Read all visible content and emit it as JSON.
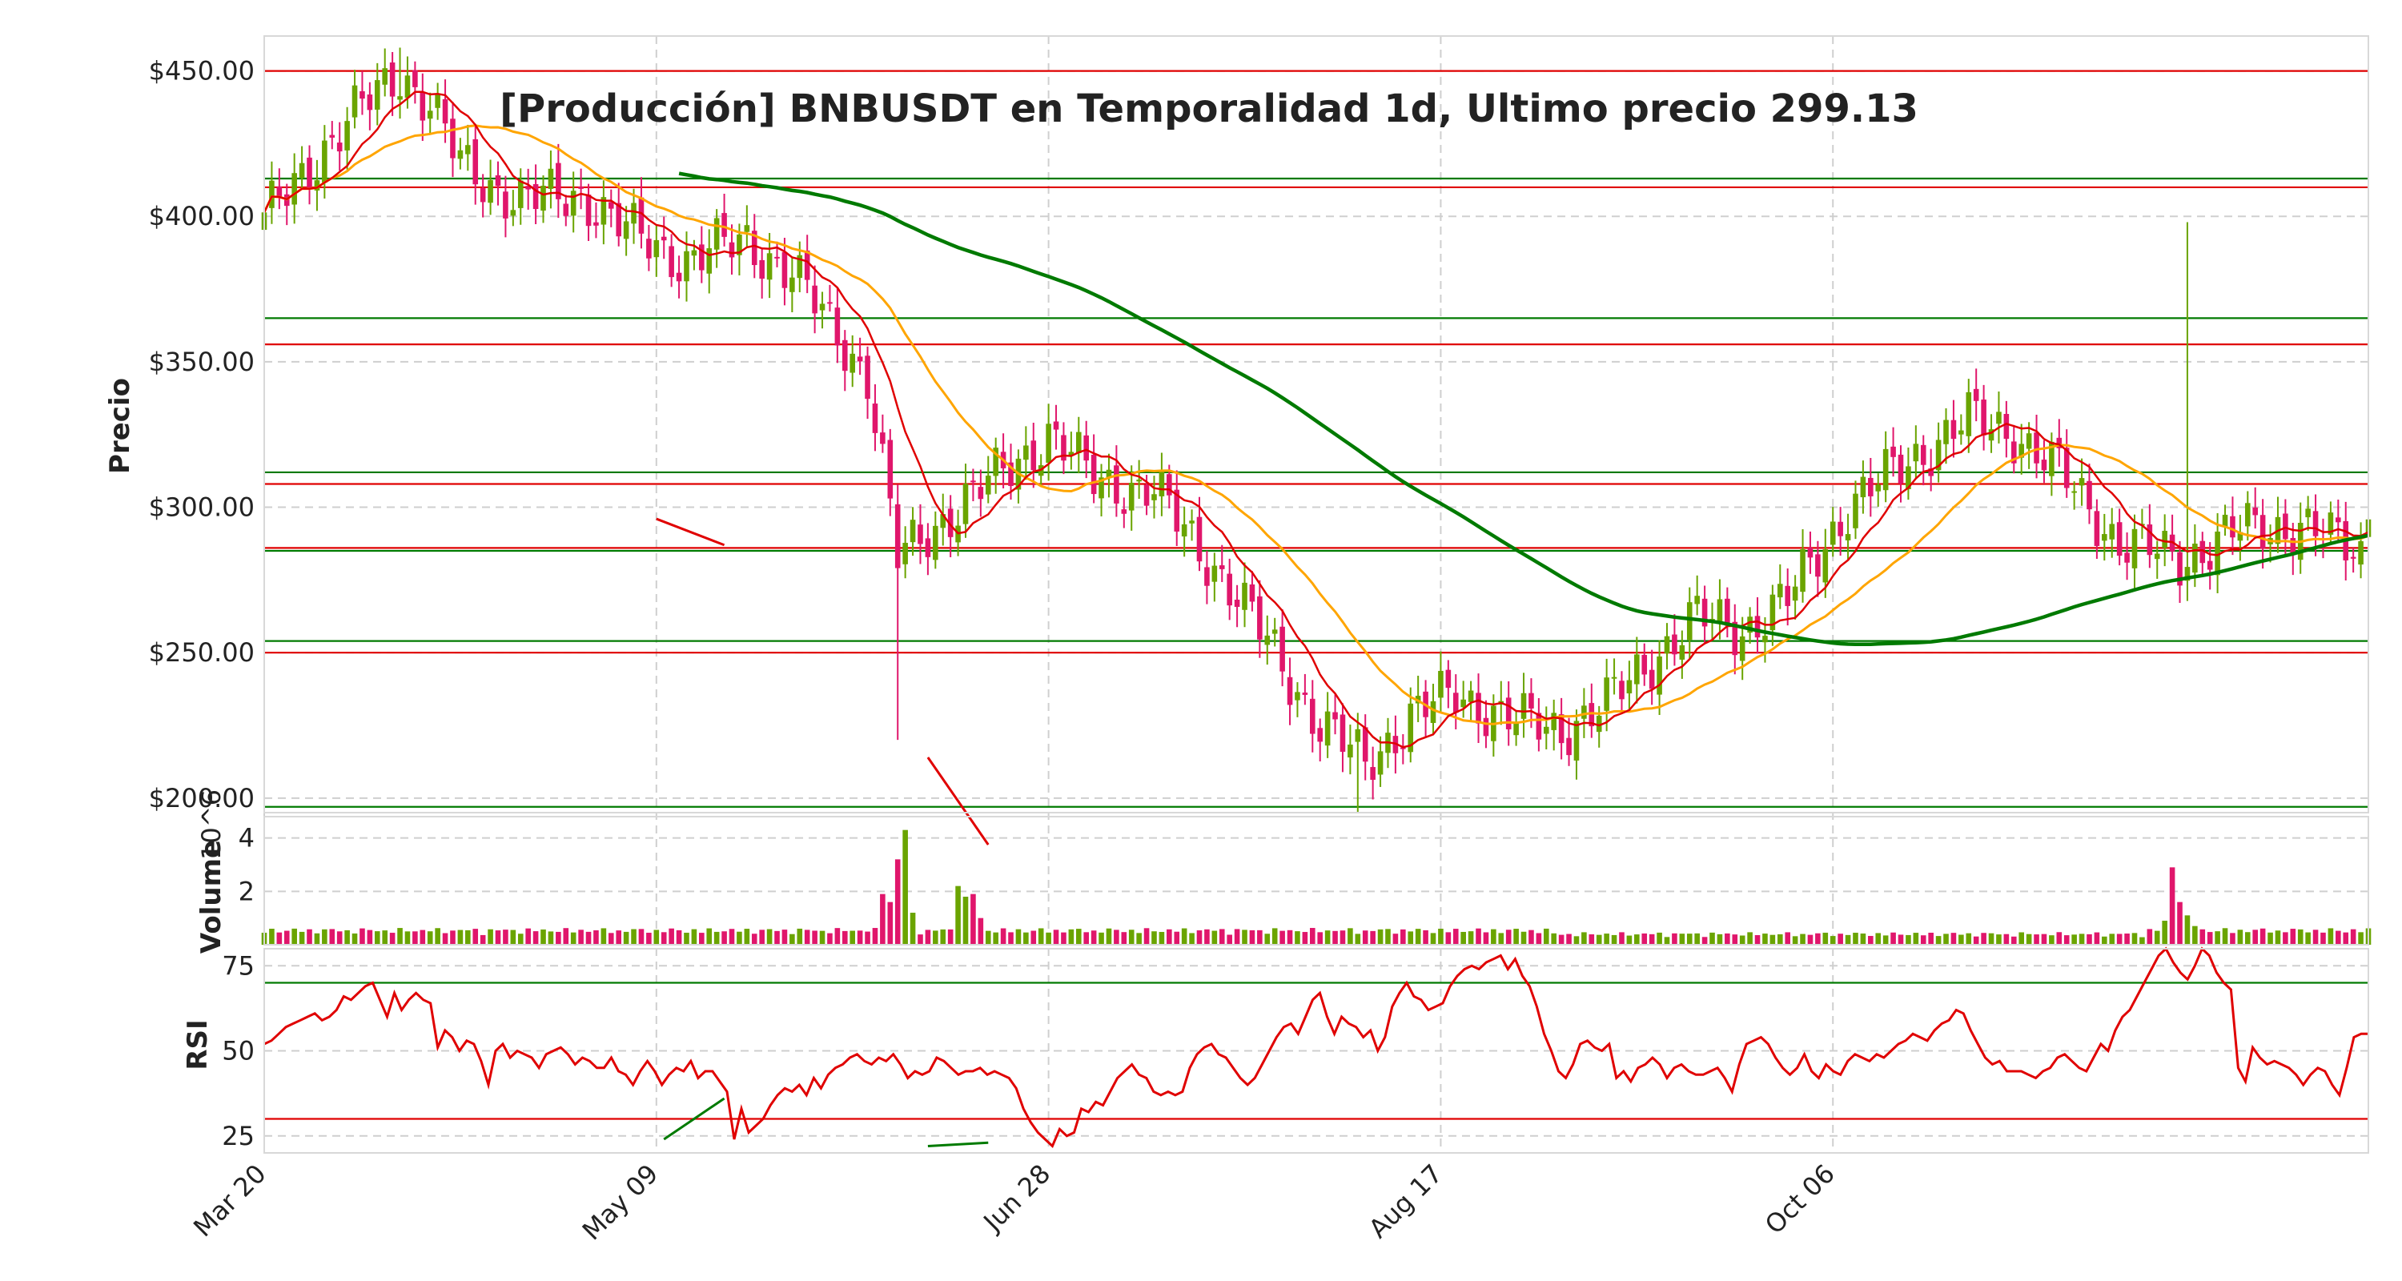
{
  "chart_data": {
    "type": "candlestick",
    "title": "[Producción] BNBUSDT en Temporalidad 1d, Ultimo precio 299.13",
    "colors": {
      "up": "#6aa400",
      "down": "#e0166b",
      "ma_short": "#e00000",
      "ma_mid": "#ffa500",
      "ma_long": "#007a00",
      "support": "#007a00",
      "resistance": "#e00000"
    },
    "grid": true,
    "x_ticks": [
      "Mar 20",
      "May 09",
      "Jun 28",
      "Aug 17",
      "Oct 06"
    ],
    "price_panel": {
      "ylabel": "Precio",
      "ylim": [
        195,
        462
      ],
      "y_ticks": [
        "$200.00",
        "$250.00",
        "$300.00",
        "$350.00",
        "$400.00",
        "$450.00"
      ],
      "resistance_lines": [
        450,
        410,
        356,
        308,
        286,
        250
      ],
      "support_lines": [
        413,
        365,
        312,
        285,
        254,
        197
      ],
      "trendlines": [
        {
          "color": "red",
          "from": [
            "May 09",
            296
          ],
          "to": [
            "May 19",
            287
          ]
        },
        {
          "color": "red",
          "from": [
            "Jun 05",
            214
          ],
          "to": [
            "Jun 15",
            184
          ]
        }
      ]
    },
    "volume_panel": {
      "ylabel": "Volume",
      "exponent": "10^6",
      "y_ticks": [
        "2",
        "4"
      ],
      "ylim": [
        0,
        4.8
      ]
    },
    "rsi_panel": {
      "ylabel": "RSI",
      "y_ticks": [
        "25",
        "50",
        "75"
      ],
      "ylim": [
        20,
        80
      ],
      "levels": [
        30,
        70
      ],
      "values": [
        52,
        53,
        55,
        57,
        58,
        59,
        60,
        61,
        59,
        60,
        62,
        66,
        65,
        67,
        69,
        70,
        65,
        60,
        67,
        62,
        65,
        67,
        65,
        64,
        51,
        56,
        54,
        50,
        53,
        52,
        47,
        40,
        50,
        52,
        48,
        50,
        49,
        48,
        45,
        49,
        50,
        51,
        49,
        46,
        48,
        47,
        45,
        45,
        48,
        44,
        43,
        40,
        44,
        47,
        44,
        40,
        43,
        45,
        44,
        47,
        42,
        44,
        44,
        41,
        38,
        24,
        33,
        26,
        28,
        30,
        34,
        37,
        39,
        38,
        40,
        37,
        42,
        39,
        43,
        45,
        46,
        48,
        49,
        47,
        46,
        48,
        47,
        49,
        46,
        42,
        44,
        43,
        44,
        48,
        47,
        45,
        43,
        44,
        44,
        45,
        43,
        44,
        43,
        42,
        39,
        33,
        29,
        26,
        24,
        22,
        27,
        25,
        26,
        33,
        32,
        35,
        34,
        38,
        42,
        44,
        46,
        43,
        42,
        38,
        37,
        38,
        37,
        38,
        45,
        49,
        51,
        52,
        49,
        48,
        45,
        42,
        40,
        42,
        46,
        50,
        54,
        57,
        58,
        55,
        60,
        65,
        67,
        60,
        55,
        60,
        58,
        57,
        54,
        56,
        50,
        54,
        63,
        67,
        70,
        66,
        65,
        62,
        63,
        64,
        69,
        72,
        74,
        75,
        74,
        76,
        77,
        78,
        74,
        77,
        72,
        69,
        63,
        55,
        50,
        44,
        42,
        46,
        52,
        53,
        51,
        50,
        52,
        42,
        44,
        41,
        45,
        46,
        48,
        46,
        42,
        45,
        46,
        44,
        43,
        43,
        44,
        45,
        42,
        38,
        46,
        52,
        53,
        54,
        52,
        48,
        45,
        43,
        45,
        49,
        44,
        42,
        46,
        44,
        43,
        47,
        49,
        48,
        47,
        49,
        48,
        50,
        52,
        53,
        55,
        54,
        53,
        56,
        58,
        59,
        62,
        61,
        56,
        52,
        48,
        46,
        47,
        44,
        44,
        44,
        43,
        42,
        44,
        45,
        48,
        49,
        47,
        45,
        44,
        48,
        52,
        50,
        56,
        60,
        62,
        66,
        70,
        74,
        78,
        80,
        76,
        73,
        71,
        75,
        80,
        78,
        73,
        70,
        68,
        45,
        41,
        51,
        48,
        46,
        47,
        46,
        45,
        43,
        40,
        43,
        45,
        44,
        40,
        37,
        45,
        54,
        55,
        55
      ]
    }
  }
}
